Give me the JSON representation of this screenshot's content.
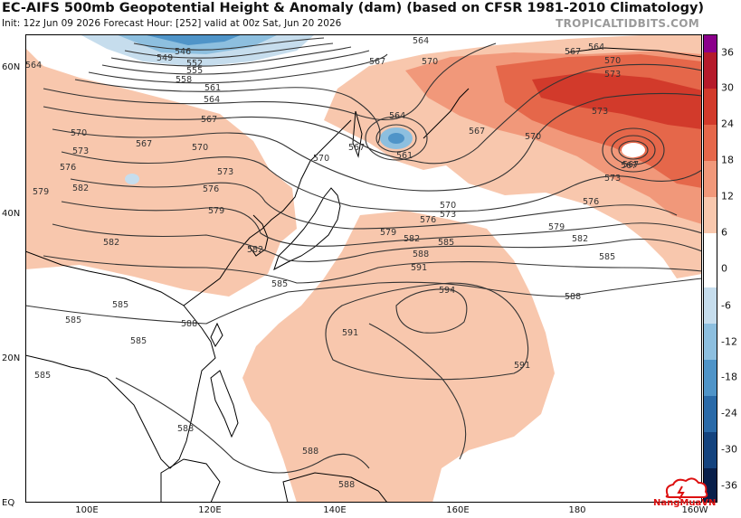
{
  "header": {
    "title": "EC-AIFS 500mb Geopotential Height & Anomaly (dam) (based on CFSR 1981-2010 Climatology)",
    "subtitle": "Init: 12z Jun 09 2026   Forecast Hour: [252]   valid at 00z Sat, Jun 20 2026",
    "brand": "TROPICALTIDBITS.COM"
  },
  "axes": {
    "lat_labels": [
      "60N",
      "40N",
      "20N",
      "EQ"
    ],
    "lon_labels": [
      "100E",
      "120E",
      "140E",
      "160E",
      "180",
      "160W"
    ]
  },
  "colorbar": {
    "labels": [
      "36",
      "30",
      "24",
      "18",
      "12",
      "6",
      "0",
      "-6",
      "-12",
      "-18",
      "-24",
      "-30",
      "-36"
    ],
    "colors": {
      "pos_36": "#8b008b",
      "pos_30": "#b51b2b",
      "pos_24": "#d23a2b",
      "pos_18": "#e5674a",
      "pos_12": "#f1987a",
      "pos_6": "#f8c7ad",
      "zero": "#ffffff",
      "neg_6": "#c6dded",
      "neg_12": "#8dbfdf",
      "neg_18": "#4f94c8",
      "neg_24": "#2a6aa8",
      "neg_30": "#14437e",
      "neg_36": "#081f4a"
    }
  },
  "contour_labels": [
    "546",
    "549",
    "552",
    "555",
    "558",
    "561",
    "564",
    "567",
    "570",
    "573",
    "576",
    "579",
    "582",
    "585",
    "588",
    "591",
    "594"
  ],
  "contour_values": {
    "c546": "546",
    "c549": "549",
    "c552": "552",
    "c555": "555",
    "c558": "558",
    "c561": "561",
    "c564": "564",
    "c567": "567",
    "c570": "570",
    "c573": "573",
    "c576": "576",
    "c579": "579",
    "c582": "582",
    "c585": "585",
    "c588": "588",
    "c591": "591",
    "c594": "594"
  },
  "logo": {
    "text": "NangMuaVN"
  }
}
